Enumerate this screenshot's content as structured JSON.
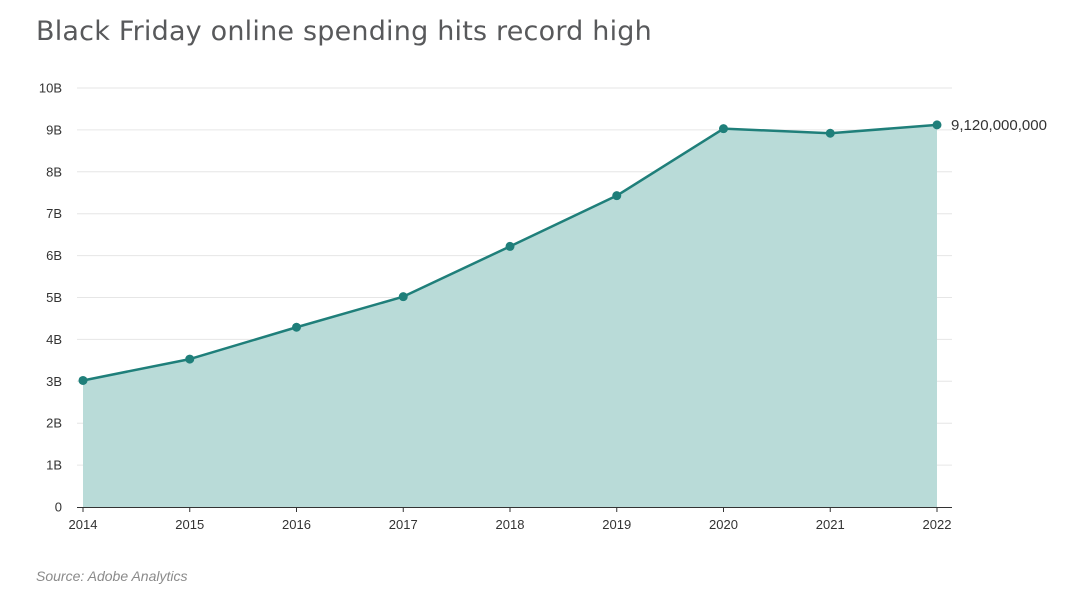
{
  "title": "Black Friday online spending hits record high",
  "source": "Source: Adobe Analytics",
  "colors": {
    "line": "#1f7f7a",
    "area": "#b9dbd8",
    "grid": "#e6e6e6",
    "axis": "#333333"
  },
  "chart_data": {
    "type": "area",
    "title": "Black Friday online spending hits record high",
    "xlabel": "",
    "ylabel": "",
    "x": [
      "2014",
      "2015",
      "2016",
      "2017",
      "2018",
      "2019",
      "2020",
      "2021",
      "2022"
    ],
    "series": [
      {
        "values": [
          3020000000,
          3530000000,
          4290000000,
          5020000000,
          6220000000,
          7430000000,
          9030000000,
          8920000000,
          9120000000
        ]
      }
    ],
    "ylim": [
      0,
      10000000000
    ],
    "y_ticks": [
      {
        "value": 0,
        "label": "0"
      },
      {
        "value": 1000000000,
        "label": "1B"
      },
      {
        "value": 2000000000,
        "label": "2B"
      },
      {
        "value": 3000000000,
        "label": "3B"
      },
      {
        "value": 4000000000,
        "label": "4B"
      },
      {
        "value": 5000000000,
        "label": "5B"
      },
      {
        "value": 6000000000,
        "label": "6B"
      },
      {
        "value": 7000000000,
        "label": "7B"
      },
      {
        "value": 8000000000,
        "label": "8B"
      },
      {
        "value": 9000000000,
        "label": "9B"
      },
      {
        "value": 10000000000,
        "label": "10B"
      }
    ],
    "annotations": [
      {
        "x": "2022",
        "label": "9,120,000,000"
      }
    ],
    "grid": true,
    "legend": "none"
  }
}
